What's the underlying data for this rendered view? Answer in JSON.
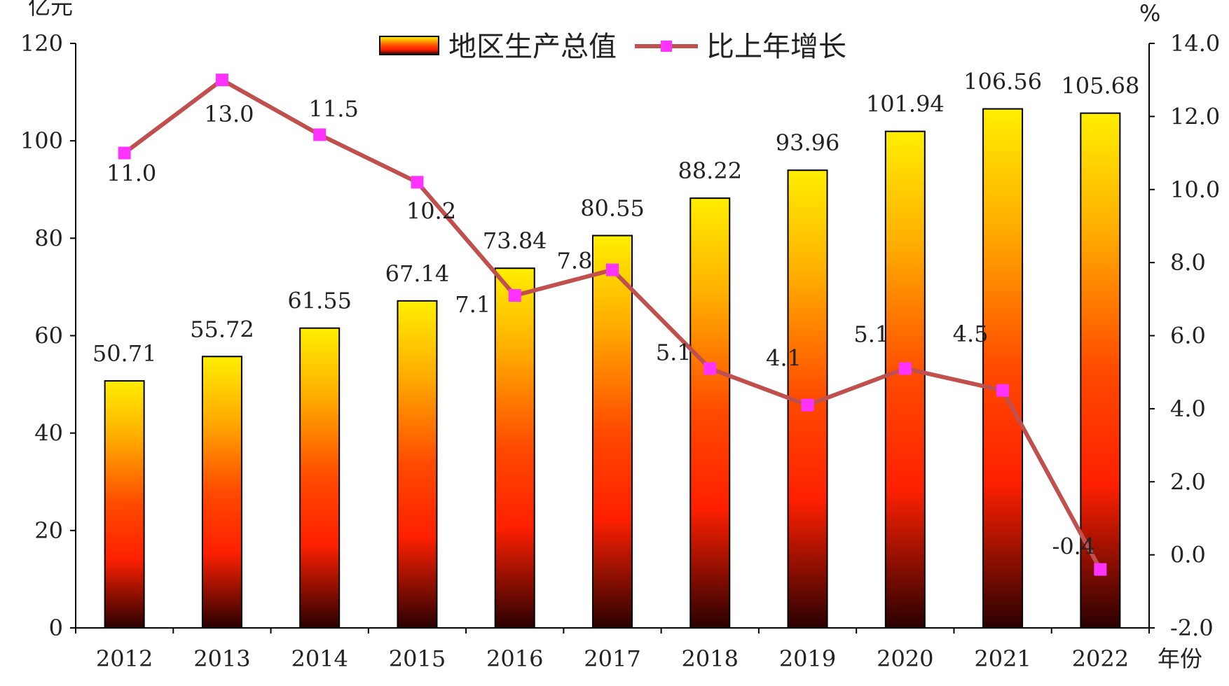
{
  "chart_data": {
    "type": "bar",
    "categories": [
      "2012",
      "2013",
      "2014",
      "2015",
      "2016",
      "2017",
      "2018",
      "2019",
      "2020",
      "2021",
      "2022"
    ],
    "series": [
      {
        "name": "地区生产总值",
        "type": "bar",
        "axis": "left",
        "values": [
          50.71,
          55.72,
          61.55,
          67.14,
          73.84,
          80.55,
          88.22,
          93.96,
          101.94,
          106.56,
          105.68
        ],
        "labels": [
          "50.71",
          "55.72",
          "61.55",
          "67.14",
          "73.84",
          "80.55",
          "88.22",
          "93.96",
          "101.94",
          "106.56",
          "105.68"
        ],
        "color_top": "#ffee00",
        "color_mid": "#ff2000",
        "color_bottom": "#2a0000"
      },
      {
        "name": "比上年增长",
        "type": "line",
        "axis": "right",
        "values": [
          11.0,
          13.0,
          11.5,
          10.2,
          7.1,
          7.8,
          5.1,
          4.1,
          5.1,
          4.5,
          -0.4
        ],
        "labels": [
          "11.0",
          "13.0",
          "11.5",
          "10.2",
          "7.1",
          "7.8",
          "5.1",
          "4.1",
          "5.1",
          "4.5",
          "-0.4"
        ],
        "line_color": "#c0504d",
        "marker_color": "#ff33ff"
      }
    ],
    "y_left": {
      "unit": "亿元",
      "ylim": [
        0,
        120
      ],
      "ticks": [
        "0",
        "20",
        "40",
        "60",
        "80",
        "100",
        "120"
      ]
    },
    "y_right": {
      "unit": "%",
      "ylim": [
        -2.0,
        14.0
      ],
      "ticks": [
        "-2.0",
        "0.0",
        "2.0",
        "4.0",
        "6.0",
        "8.0",
        "10.0",
        "12.0",
        "14.0"
      ]
    },
    "x_unit": "年份",
    "legend_position": "top-center"
  }
}
